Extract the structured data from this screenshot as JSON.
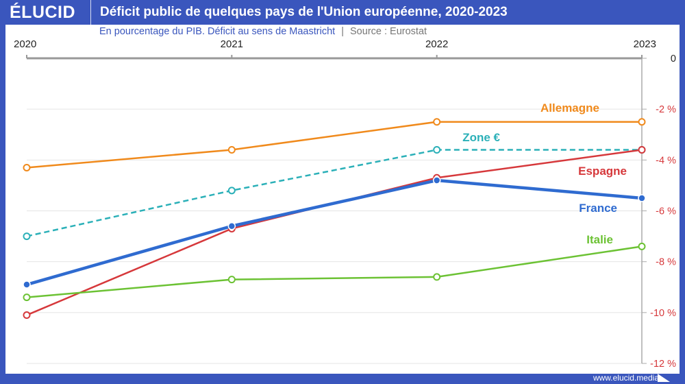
{
  "header": {
    "logo": "ÉLUCID",
    "title": "Déficit public de quelques pays de l'Union européenne, 2020-2023"
  },
  "subtitle": {
    "main": "En pourcentage du PIB. Déficit au sens de Maastricht",
    "separator": "|",
    "source": "Source : Eurostat"
  },
  "footer": {
    "url": "www.elucid.media"
  },
  "chart_data": {
    "type": "line",
    "title": "Déficit public de quelques pays de l'Union européenne, 2020-2023",
    "subtitle": "En pourcentage du PIB. Déficit au sens de Maastricht | Source : Eurostat",
    "x": [
      "2020",
      "2021",
      "2022",
      "2023"
    ],
    "ylim": [
      -12,
      0
    ],
    "yticks": [
      {
        "v": 0,
        "label": "0"
      },
      {
        "v": -2,
        "label": "-2 %"
      },
      {
        "v": -4,
        "label": "-4 %"
      },
      {
        "v": -6,
        "label": "-6 %"
      },
      {
        "v": -8,
        "label": "-8 %"
      },
      {
        "v": -10,
        "label": "-10 %"
      },
      {
        "v": -12,
        "label": "-12 %"
      }
    ],
    "grid": true,
    "x_axis_position": "top",
    "y_axis_position": "right",
    "series": [
      {
        "name": "Allemagne",
        "color": "#f08a1c",
        "values": [
          -4.3,
          -3.6,
          -2.5,
          -2.5
        ],
        "dashed": false,
        "width": 2.5,
        "filled": false
      },
      {
        "name": "Zone €",
        "color": "#2bb0b8",
        "values": [
          -7.0,
          -5.2,
          -3.6,
          -3.6
        ],
        "dashed": true,
        "width": 2.5,
        "filled": false
      },
      {
        "name": "Espagne",
        "color": "#d6383b",
        "values": [
          -10.1,
          -6.7,
          -4.7,
          -3.6
        ],
        "dashed": false,
        "width": 2.5,
        "filled": false
      },
      {
        "name": "France",
        "color": "#2f6bd0",
        "values": [
          -8.9,
          -6.6,
          -4.8,
          -5.5
        ],
        "dashed": false,
        "width": 4.5,
        "filled": true
      },
      {
        "name": "Italie",
        "color": "#6cc234",
        "values": [
          -9.4,
          -8.7,
          -8.6,
          -7.4
        ],
        "dashed": false,
        "width": 2.5,
        "filled": false
      }
    ]
  }
}
